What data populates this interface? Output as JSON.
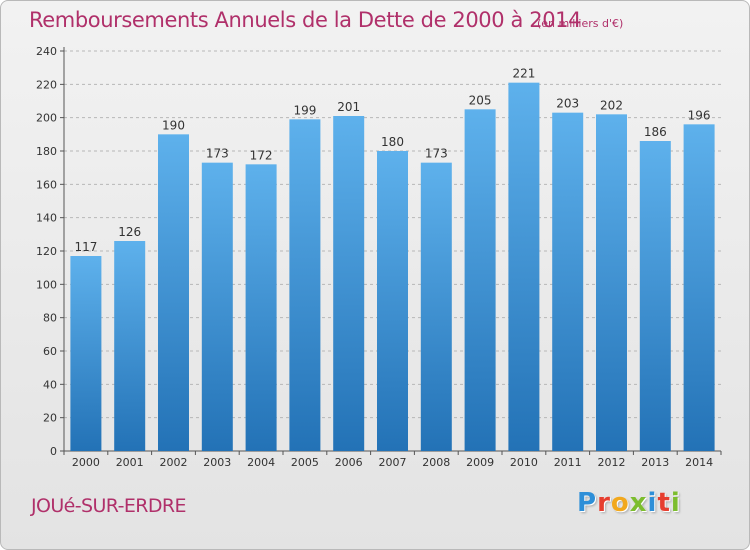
{
  "title": "Remboursements Annuels de la Dette de 2000 à 2014",
  "subtitle": "(en milliers d'€)",
  "commune": "JOUé-SUR-ERDRE",
  "brand": "Proxiti",
  "colors": {
    "title": "#b0306a",
    "bar_top": "#5eb1ec",
    "bar_bottom": "#2372b6",
    "grid": "#b7b7b7"
  },
  "chart_data": {
    "type": "bar",
    "categories": [
      "2000",
      "2001",
      "2002",
      "2003",
      "2004",
      "2005",
      "2006",
      "2007",
      "2008",
      "2009",
      "2010",
      "2011",
      "2012",
      "2013",
      "2014"
    ],
    "values": [
      117,
      126,
      190,
      173,
      172,
      199,
      201,
      180,
      173,
      205,
      221,
      203,
      202,
      186,
      196
    ],
    "ylim": [
      0,
      240
    ],
    "yticks": [
      0,
      20,
      40,
      60,
      80,
      100,
      120,
      140,
      160,
      180,
      200,
      220,
      240
    ],
    "grid": true,
    "data_labels": true
  }
}
